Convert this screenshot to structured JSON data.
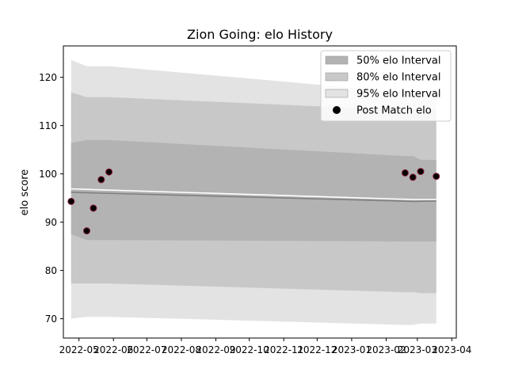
{
  "chart_data": {
    "type": "area",
    "title": "Zion Going: elo History",
    "xlabel": "",
    "ylabel": "elo score",
    "x_ticks": [
      "2022-05",
      "2022-06",
      "2022-07",
      "2022-08",
      "2022-09",
      "2022-10",
      "2022-11",
      "2022-12",
      "2023-01",
      "2023-02",
      "2023-03",
      "2023-04"
    ],
    "y_ticks": [
      70,
      80,
      90,
      100,
      110,
      120
    ],
    "ylim": [
      66,
      126.5
    ],
    "xlim": [
      "2022-04-17",
      "2023-04-05"
    ],
    "grid": false,
    "legend_position": "top-right",
    "legend": [
      {
        "label": "50% elo Interval",
        "kind": "band",
        "color": "#b3b3b3"
      },
      {
        "label": "80% elo Interval",
        "kind": "band",
        "color": "#c8c8c8"
      },
      {
        "label": "95% elo Interval",
        "kind": "band",
        "color": "#e3e3e3"
      },
      {
        "label": "Post Match elo",
        "kind": "marker",
        "color": "#000000"
      }
    ],
    "bands": {
      "dates": [
        "2022-04-24",
        "2022-05-08",
        "2022-05-14",
        "2022-05-21",
        "2022-05-28",
        "2023-02-18",
        "2023-02-25",
        "2023-03-04",
        "2023-03-18"
      ],
      "interval_95": {
        "lower": [
          70.0,
          70.4,
          70.4,
          70.4,
          70.4,
          68.7,
          68.7,
          69.0,
          69.0
        ],
        "upper": [
          123.6,
          122.3,
          122.3,
          122.3,
          122.3,
          116.9,
          116.9,
          116.9,
          116.9
        ]
      },
      "interval_80": {
        "lower": [
          77.3,
          77.3,
          77.3,
          77.3,
          77.3,
          75.5,
          75.5,
          75.3,
          75.3
        ],
        "upper": [
          116.9,
          115.9,
          115.9,
          115.9,
          115.9,
          113.2,
          113.2,
          113.2,
          113.2
        ]
      },
      "interval_50": {
        "lower": [
          87.5,
          86.3,
          86.3,
          86.3,
          86.3,
          86.0,
          86.0,
          86.0,
          86.0
        ],
        "upper": [
          106.4,
          107.0,
          107.0,
          107.0,
          107.0,
          103.7,
          103.7,
          102.9,
          102.9
        ]
      }
    },
    "mean_line": {
      "dates": [
        "2022-04-24",
        "2022-05-21",
        "2023-02-25",
        "2023-03-18"
      ],
      "values": [
        96.2,
        96.0,
        94.3,
        94.4
      ]
    },
    "white_line": {
      "dates": [
        "2022-04-24",
        "2022-05-21",
        "2023-02-25",
        "2023-03-18"
      ],
      "values": [
        96.9,
        96.7,
        94.7,
        94.7
      ]
    },
    "post_match_elo": [
      {
        "date": "2022-04-24",
        "value": 94.3
      },
      {
        "date": "2022-05-08",
        "value": 88.2
      },
      {
        "date": "2022-05-14",
        "value": 92.9
      },
      {
        "date": "2022-05-21",
        "value": 98.8
      },
      {
        "date": "2022-05-28",
        "value": 100.4
      },
      {
        "date": "2023-02-18",
        "value": 100.2
      },
      {
        "date": "2023-02-25",
        "value": 99.3
      },
      {
        "date": "2023-03-04",
        "value": 100.5
      },
      {
        "date": "2023-03-18",
        "value": 99.5
      }
    ],
    "colors": {
      "interval_95": "#e3e3e3",
      "interval_80": "#c8c8c8",
      "interval_50": "#b3b3b3",
      "mean_line": "#808080",
      "white_line": "#ffffff",
      "marker_fill": "#000000",
      "marker_edge": "#8b1a3a"
    }
  }
}
